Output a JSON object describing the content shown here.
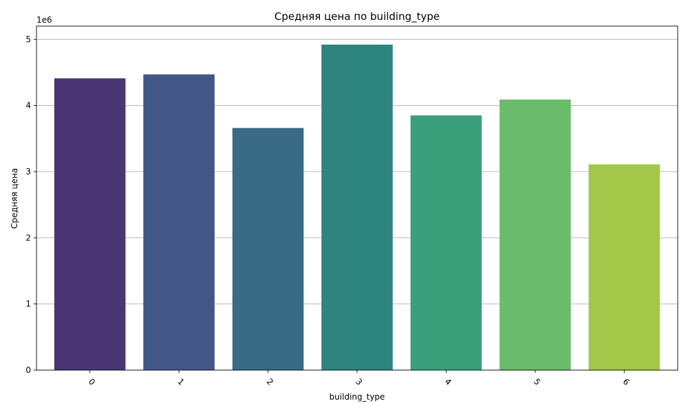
{
  "chart_data": {
    "type": "bar",
    "title": "Средняя цена по building_type",
    "xlabel": "building_type",
    "ylabel": "Средняя цена",
    "offset_label": "1e6",
    "categories": [
      "0",
      "1",
      "2",
      "3",
      "4",
      "5",
      "6"
    ],
    "values": [
      4410000,
      4470000,
      3660000,
      4920000,
      3850000,
      4090000,
      3110000
    ],
    "ylim": [
      0,
      5200000
    ],
    "yticks": [
      0,
      1,
      2,
      3,
      4,
      5
    ],
    "ytick_scale": 1000000,
    "grid": "y",
    "colors": [
      "#4a3672",
      "#435786",
      "#3a6b86",
      "#2e847e",
      "#3aa07c",
      "#6bbb6c",
      "#a3c749"
    ]
  }
}
